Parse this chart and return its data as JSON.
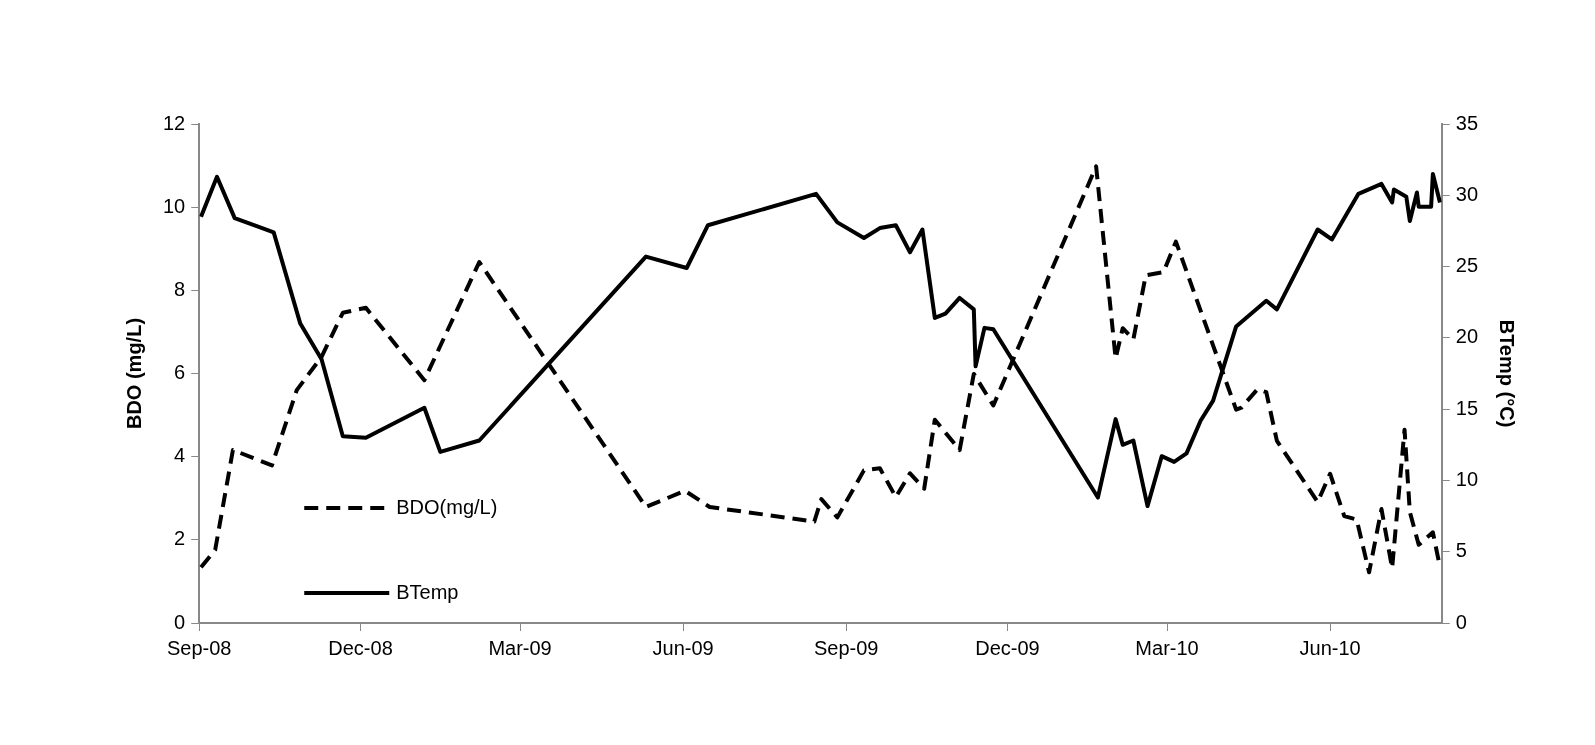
{
  "chart_data": {
    "type": "line",
    "ylabel": "BDO (mg/L)",
    "y2label": "BTemp (°C)",
    "xlim": [
      "2008-09-01",
      "2010-08-03"
    ],
    "xticks": [
      {
        "value": "2008-09-01",
        "label": "Sep-08"
      },
      {
        "value": "2008-12-01",
        "label": "Dec-08"
      },
      {
        "value": "2009-03-01",
        "label": "Mar-09"
      },
      {
        "value": "2009-06-01",
        "label": "Jun-09"
      },
      {
        "value": "2009-09-01",
        "label": "Sep-09"
      },
      {
        "value": "2009-12-01",
        "label": "Dec-09"
      },
      {
        "value": "2010-03-01",
        "label": "Mar-10"
      },
      {
        "value": "2010-06-01",
        "label": "Jun-10"
      }
    ],
    "ylim": [
      0,
      12
    ],
    "yticks": [
      0,
      2,
      4,
      6,
      8,
      10,
      12
    ],
    "y2lim": [
      0,
      35
    ],
    "y2ticks": [
      0,
      5,
      10,
      15,
      20,
      25,
      30,
      35
    ],
    "legend": "bottom left",
    "marker": "none",
    "series": [
      {
        "name": "BDO(mg/L)",
        "color": "#000000",
        "line_style": "dashed",
        "axis": "y",
        "x": [
          "2008-09-02",
          "2008-09-10",
          "2008-09-20",
          "2008-10-12",
          "2008-10-26",
          "2008-11-09",
          "2008-11-21",
          "2008-12-04",
          "2009-01-06",
          "2009-02-06",
          "2009-05-11",
          "2009-06-02",
          "2009-06-16",
          "2009-08-14",
          "2009-08-18",
          "2009-08-27",
          "2009-09-11",
          "2009-09-20",
          "2009-09-29",
          "2009-10-07",
          "2009-10-15",
          "2009-10-21",
          "2009-11-04",
          "2009-11-12",
          "2009-11-23",
          "2010-01-20",
          "2010-01-31",
          "2010-02-04",
          "2010-02-10",
          "2010-02-17",
          "2010-02-27",
          "2010-03-06",
          "2010-04-09",
          "2010-04-12",
          "2010-04-21",
          "2010-04-26",
          "2010-05-02",
          "2010-05-25",
          "2010-06-01",
          "2010-06-09",
          "2010-06-16",
          "2010-06-23",
          "2010-06-30",
          "2010-07-06",
          "2010-07-13",
          "2010-07-16",
          "2010-07-21",
          "2010-07-29",
          "2010-08-02"
        ],
        "values": [
          1.34,
          1.76,
          4.16,
          3.79,
          5.6,
          6.4,
          7.46,
          7.58,
          5.84,
          8.68,
          2.79,
          3.18,
          2.79,
          2.44,
          2.98,
          2.54,
          3.67,
          3.72,
          3.03,
          3.6,
          3.23,
          4.89,
          4.16,
          5.99,
          5.23,
          10.98,
          6.36,
          7.09,
          6.82,
          8.36,
          8.44,
          9.17,
          5.13,
          5.18,
          5.62,
          5.55,
          4.38,
          2.91,
          3.59,
          2.57,
          2.49,
          1.22,
          2.74,
          1.32,
          4.65,
          2.67,
          1.88,
          2.18,
          1.34
        ]
      },
      {
        "name": "BTemp",
        "color": "#000000",
        "line_style": "solid",
        "axis": "y2",
        "x": [
          "2008-09-02",
          "2008-09-11",
          "2008-09-21",
          "2008-10-13",
          "2008-10-28",
          "2008-11-09",
          "2008-11-21",
          "2008-12-04",
          "2009-01-06",
          "2009-01-15",
          "2009-02-06",
          "2009-05-11",
          "2009-06-03",
          "2009-06-15",
          "2009-08-15",
          "2009-08-27",
          "2009-09-11",
          "2009-09-20",
          "2009-09-29",
          "2009-10-07",
          "2009-10-14",
          "2009-10-21",
          "2009-10-27",
          "2009-11-04",
          "2009-11-12",
          "2009-11-13",
          "2009-11-18",
          "2009-11-23",
          "2010-01-21",
          "2010-01-31",
          "2010-02-04",
          "2010-02-10",
          "2010-02-18",
          "2010-02-26",
          "2010-03-05",
          "2010-03-12",
          "2010-03-20",
          "2010-03-27",
          "2010-04-09",
          "2010-04-26",
          "2010-05-02",
          "2010-05-25",
          "2010-06-02",
          "2010-06-17",
          "2010-06-30",
          "2010-07-06",
          "2010-07-07",
          "2010-07-14",
          "2010-07-16",
          "2010-07-20",
          "2010-07-21",
          "2010-07-28",
          "2010-07-29",
          "2010-08-02"
        ],
        "values": [
          28.5,
          31.3,
          28.4,
          27.4,
          21.0,
          18.5,
          13.1,
          13.0,
          15.1,
          12.0,
          12.8,
          25.7,
          24.9,
          27.9,
          30.1,
          28.1,
          27.0,
          27.7,
          27.9,
          26.0,
          27.6,
          21.4,
          21.7,
          22.8,
          22.0,
          18.0,
          20.7,
          20.6,
          8.8,
          14.3,
          12.5,
          12.8,
          8.2,
          11.7,
          11.3,
          11.9,
          14.2,
          15.6,
          20.8,
          22.6,
          22.0,
          27.6,
          26.9,
          30.1,
          30.8,
          29.5,
          30.4,
          29.9,
          28.2,
          30.2,
          29.2,
          29.2,
          31.5,
          29.5
        ]
      }
    ]
  }
}
